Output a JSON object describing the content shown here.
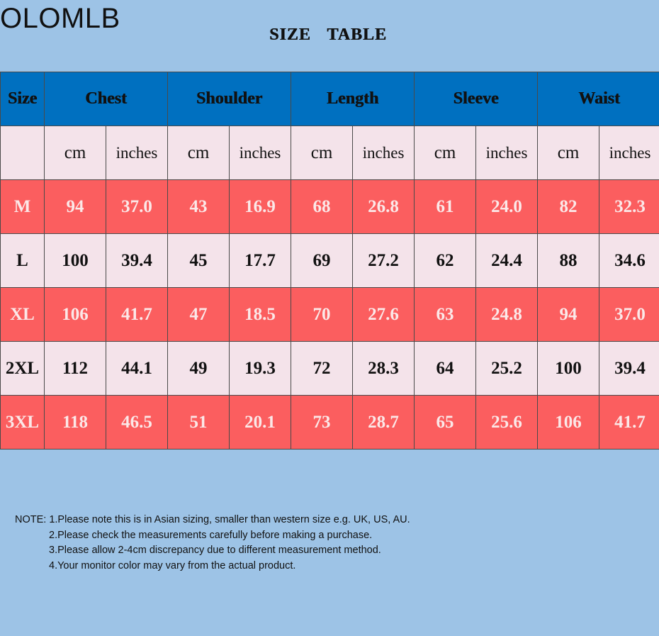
{
  "brand": "OLOMLB",
  "title": "SIZE TABLE",
  "table": {
    "headers": [
      "Size",
      "Chest",
      "Shoulder",
      "Length",
      "Sleeve",
      "Waist"
    ],
    "unit_cm": "cm",
    "unit_in": "inches",
    "rows": [
      {
        "size": "M",
        "values": [
          "94",
          "37.0",
          "43",
          "16.9",
          "68",
          "26.8",
          "61",
          "24.0",
          "82",
          "32.3"
        ]
      },
      {
        "size": "L",
        "values": [
          "100",
          "39.4",
          "45",
          "17.7",
          "69",
          "27.2",
          "62",
          "24.4",
          "88",
          "34.6"
        ]
      },
      {
        "size": "XL",
        "values": [
          "106",
          "41.7",
          "47",
          "18.5",
          "70",
          "27.6",
          "63",
          "24.8",
          "94",
          "37.0"
        ]
      },
      {
        "size": "2XL",
        "values": [
          "112",
          "44.1",
          "49",
          "19.3",
          "72",
          "28.3",
          "64",
          "25.2",
          "100",
          "39.4"
        ]
      },
      {
        "size": "3XL",
        "values": [
          "118",
          "46.5",
          "51",
          "20.1",
          "73",
          "28.7",
          "65",
          "25.6",
          "106",
          "41.7"
        ]
      }
    ]
  },
  "notes": [
    "NOTE: 1.Please note this is in Asian sizing, smaller than western size e.g. UK, US, AU.",
    "2.Please check the measurements carefully before making a purchase.",
    "3.Please allow 2-4cm discrepancy due to different measurement method.",
    "4.Your monitor color may vary from the actual product."
  ],
  "colors": {
    "background": "#9dc3e6",
    "header": "#0070c0",
    "row_red": "#fb5e5f",
    "row_pink": "#f4e3ea"
  }
}
